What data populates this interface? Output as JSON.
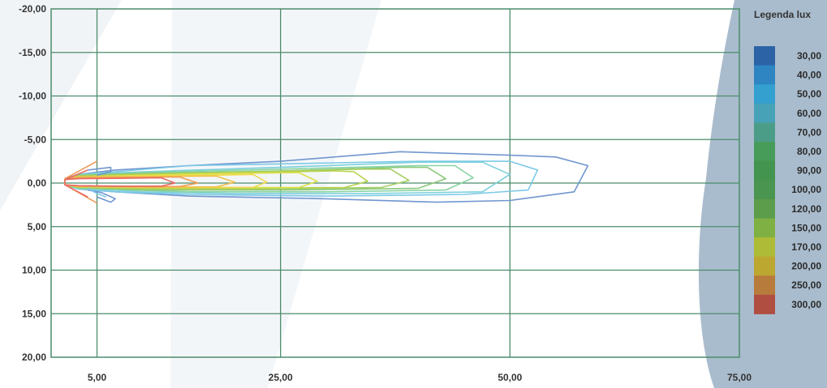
{
  "chart_data": {
    "type": "contour",
    "title": "",
    "xlabel": "",
    "ylabel": "",
    "x_ticks": [
      "5,00",
      "25,00",
      "50,00",
      "75,00"
    ],
    "x_tick_values": [
      5,
      25,
      50,
      75
    ],
    "y_ticks": [
      "-20,00",
      "-15,00",
      "-10,00",
      "-5,00",
      "0,00",
      "5,00",
      "10,00",
      "15,00",
      "20,00"
    ],
    "y_tick_values": [
      -20,
      -15,
      -10,
      -5,
      0,
      5,
      10,
      15,
      20
    ],
    "xlim": [
      0,
      75
    ],
    "ylim": [
      20,
      -20
    ],
    "grid": true,
    "grid_color": "#4c8c6c",
    "legend": {
      "title": "Legenda lux",
      "placement": "right",
      "entries": [
        {
          "label": "30,00",
          "color": "#2b63a6"
        },
        {
          "label": "40,00",
          "color": "#2f85c2"
        },
        {
          "label": "50,00",
          "color": "#34a0cf"
        },
        {
          "label": "60,00",
          "color": "#47a2b8"
        },
        {
          "label": "70,00",
          "color": "#4c9d88"
        },
        {
          "label": "80,00",
          "color": "#479c5a"
        },
        {
          "label": "90,00",
          "color": "#43944e"
        },
        {
          "label": "100,00",
          "color": "#4a9550"
        },
        {
          "label": "120,00",
          "color": "#5c9d4c"
        },
        {
          "label": "150,00",
          "color": "#7fb043"
        },
        {
          "label": "170,00",
          "color": "#adbb36"
        },
        {
          "label": "200,00",
          "color": "#bca831"
        },
        {
          "label": "250,00",
          "color": "#b77c3c"
        },
        {
          "label": "300,00",
          "color": "#b04e42"
        }
      ]
    },
    "series": [
      {
        "level": "30,00",
        "color": "#7096cf",
        "points": [
          [
            1.5,
            -0.5
          ],
          [
            3,
            -1
          ],
          [
            7,
            -1.5
          ],
          [
            15,
            -2
          ],
          [
            25,
            -2.5
          ],
          [
            38,
            -3.6
          ],
          [
            50,
            -3.2
          ],
          [
            55,
            -3
          ],
          [
            58.5,
            -2
          ],
          [
            57,
            1
          ],
          [
            50,
            2
          ],
          [
            42,
            2.2
          ],
          [
            30,
            1.8
          ],
          [
            15,
            1.5
          ],
          [
            7,
            1
          ],
          [
            3,
            0.7
          ],
          [
            1.5,
            0.2
          ],
          [
            1.5,
            -0.5
          ]
        ]
      },
      {
        "level": "40,00",
        "color": "#7cc8e6",
        "points": [
          [
            1.5,
            -0.5
          ],
          [
            3,
            -1
          ],
          [
            7,
            -1.3
          ],
          [
            15,
            -2
          ],
          [
            25,
            -2.2
          ],
          [
            40,
            -2.5
          ],
          [
            50,
            -2.5
          ],
          [
            53,
            -1.5
          ],
          [
            52,
            0.8
          ],
          [
            45,
            1.3
          ],
          [
            30,
            1.5
          ],
          [
            15,
            1.3
          ],
          [
            7,
            1
          ],
          [
            3,
            0.7
          ],
          [
            1.5,
            0.2
          ],
          [
            1.5,
            -0.5
          ]
        ]
      },
      {
        "level": "50,00",
        "color": "#7cd0dc",
        "points": [
          [
            1.5,
            -0.5
          ],
          [
            3,
            -1
          ],
          [
            10,
            -1.3
          ],
          [
            25,
            -1.8
          ],
          [
            40,
            -2.4
          ],
          [
            47,
            -2.4
          ],
          [
            50,
            -1
          ],
          [
            47,
            1
          ],
          [
            35,
            1.2
          ],
          [
            20,
            1.2
          ],
          [
            10,
            1
          ],
          [
            3,
            0.6
          ],
          [
            1.5,
            0.2
          ],
          [
            1.5,
            -0.5
          ]
        ]
      },
      {
        "level": "60,00",
        "color": "#88d4a4",
        "points": [
          [
            1.5,
            -0.5
          ],
          [
            3,
            -0.9
          ],
          [
            10,
            -1.2
          ],
          [
            25,
            -1.6
          ],
          [
            40,
            -2
          ],
          [
            44,
            -2
          ],
          [
            46,
            -0.6
          ],
          [
            43,
            0.8
          ],
          [
            30,
            1
          ],
          [
            15,
            1
          ],
          [
            3,
            0.6
          ],
          [
            1.5,
            0.2
          ],
          [
            1.5,
            -0.5
          ]
        ]
      },
      {
        "level": "80,00",
        "color": "#8cc87c",
        "points": [
          [
            1.5,
            -0.5
          ],
          [
            3,
            -0.9
          ],
          [
            10,
            -1.1
          ],
          [
            25,
            -1.4
          ],
          [
            38,
            -1.8
          ],
          [
            41,
            -1.8
          ],
          [
            43,
            -0.5
          ],
          [
            40,
            0.6
          ],
          [
            25,
            0.8
          ],
          [
            10,
            0.8
          ],
          [
            3,
            0.5
          ],
          [
            1.5,
            0.2
          ],
          [
            1.5,
            -0.5
          ]
        ]
      },
      {
        "level": "100,00",
        "color": "#a6cf64",
        "points": [
          [
            1.5,
            -0.5
          ],
          [
            3,
            -0.8
          ],
          [
            10,
            -1
          ],
          [
            22,
            -1.3
          ],
          [
            34,
            -1.6
          ],
          [
            37,
            -1.6
          ],
          [
            39,
            -0.3
          ],
          [
            36,
            0.5
          ],
          [
            22,
            0.7
          ],
          [
            10,
            0.7
          ],
          [
            3,
            0.5
          ],
          [
            1.5,
            0.2
          ],
          [
            1.5,
            -0.5
          ]
        ]
      },
      {
        "level": "120,00",
        "color": "#b5d24d",
        "points": [
          [
            1.5,
            -0.5
          ],
          [
            3,
            -0.8
          ],
          [
            10,
            -1
          ],
          [
            20,
            -1.2
          ],
          [
            31,
            -1.4
          ],
          [
            33,
            -1.3
          ],
          [
            34.5,
            -0.2
          ],
          [
            32,
            0.5
          ],
          [
            20,
            0.6
          ],
          [
            10,
            0.6
          ],
          [
            3,
            0.4
          ],
          [
            1.5,
            0.2
          ],
          [
            1.5,
            -0.5
          ]
        ]
      },
      {
        "level": "150,00",
        "color": "#dde04a",
        "points": [
          [
            1.5,
            -0.5
          ],
          [
            3,
            -0.7
          ],
          [
            10,
            -0.9
          ],
          [
            20,
            -1.1
          ],
          [
            27,
            -1.2
          ],
          [
            29,
            -0.2
          ],
          [
            27,
            0.5
          ],
          [
            15,
            0.5
          ],
          [
            3,
            0.4
          ],
          [
            1.5,
            0.2
          ],
          [
            1.5,
            -0.5
          ]
        ]
      },
      {
        "level": "170,00",
        "color": "#f2d84a",
        "points": [
          [
            1.5,
            -0.5
          ],
          [
            3,
            -0.7
          ],
          [
            10,
            -0.8
          ],
          [
            18,
            -0.9
          ],
          [
            22,
            -1
          ],
          [
            23.5,
            -0.1
          ],
          [
            22,
            0.5
          ],
          [
            12,
            0.5
          ],
          [
            3,
            0.4
          ],
          [
            1.5,
            0.2
          ],
          [
            1.5,
            -0.5
          ]
        ]
      },
      {
        "level": "200,00",
        "color": "#f0c04a",
        "points": [
          [
            1.5,
            -0.5
          ],
          [
            3,
            -0.7
          ],
          [
            10,
            -0.75
          ],
          [
            18,
            -0.8
          ],
          [
            20,
            -0.1
          ],
          [
            18,
            0.45
          ],
          [
            10,
            0.45
          ],
          [
            3,
            0.35
          ],
          [
            1.5,
            0.2
          ],
          [
            1.5,
            -0.5
          ]
        ]
      },
      {
        "level": "250,00",
        "color": "#ef9a55",
        "points": [
          [
            1.5,
            -0.5
          ],
          [
            3,
            -0.6
          ],
          [
            8,
            -0.65
          ],
          [
            14,
            -0.7
          ],
          [
            16,
            0
          ],
          [
            14,
            0.4
          ],
          [
            8,
            0.4
          ],
          [
            3,
            0.35
          ],
          [
            1.5,
            0.2
          ],
          [
            1.5,
            -0.5
          ]
        ]
      },
      {
        "level": "300,00",
        "color": "#e86b62",
        "points": [
          [
            1.5,
            -0.4
          ],
          [
            3,
            -0.5
          ],
          [
            8,
            -0.55
          ],
          [
            12,
            -0.6
          ],
          [
            13.5,
            0
          ],
          [
            12,
            0.35
          ],
          [
            8,
            0.35
          ],
          [
            3,
            0.3
          ],
          [
            1.5,
            0.2
          ],
          [
            1.5,
            -0.4
          ]
        ]
      }
    ],
    "near_field_strokes": [
      {
        "color": "#ef9a55",
        "points": [
          [
            1.5,
            -0.5
          ],
          [
            5,
            -2.5
          ]
        ]
      },
      {
        "color": "#ef9a55",
        "points": [
          [
            1.5,
            0.2
          ],
          [
            5,
            2.3
          ]
        ]
      },
      {
        "color": "#e86b62",
        "points": [
          [
            1.5,
            -0.4
          ],
          [
            4,
            -1.5
          ]
        ]
      },
      {
        "color": "#e86b62",
        "points": [
          [
            1.5,
            0.2
          ],
          [
            4,
            1.6
          ]
        ]
      },
      {
        "color": "#7096cf",
        "points": [
          [
            4,
            -1.5
          ],
          [
            6.5,
            -1.8
          ],
          [
            6.5,
            -1.3
          ],
          [
            5,
            -0.9
          ]
        ]
      },
      {
        "color": "#7096cf",
        "points": [
          [
            4,
            0.8
          ],
          [
            5.5,
            1.1
          ],
          [
            7,
            1.8
          ],
          [
            6.5,
            2.2
          ],
          [
            5,
            1.6
          ]
        ]
      },
      {
        "color": "#7cc8e6",
        "points": [
          [
            4,
            0.6
          ],
          [
            5,
            1.2
          ],
          [
            6,
            1.6
          ]
        ]
      }
    ]
  }
}
